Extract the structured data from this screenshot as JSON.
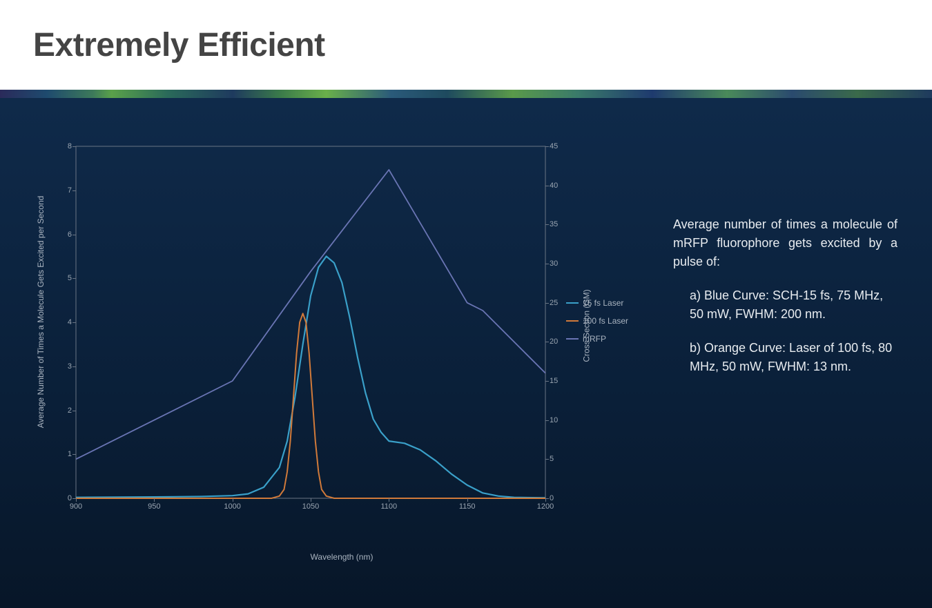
{
  "header": {
    "title": "Extremely Efficient"
  },
  "description": {
    "intro": "Average number of times a molecule of mRFP fluorophore gets excited by a pulse of:",
    "item_a": "a) Blue Curve: SCH-15 fs, 75 MHz, 50 mW, FWHM: 200 nm.",
    "item_b": "b) Orange Curve: Laser of 100 fs, 80 MHz, 50 mW, FWHM: 13 nm."
  },
  "chart": {
    "type": "line-dual-axis",
    "background_color": "transparent",
    "border_color": "#6a7584",
    "tick_color": "#9aa5b1",
    "axis_label_color": "#aab4c0",
    "axis_label_fontsize": 12,
    "tick_fontsize": 11,
    "x": {
      "label": "Wavelength (nm)",
      "min": 900,
      "max": 1200,
      "ticks": [
        900,
        950,
        1000,
        1050,
        1100,
        1150,
        1200
      ]
    },
    "y_left": {
      "label": "Average Number of Times a Molecule Gets Excited per Second",
      "min": 0,
      "max": 8,
      "ticks": [
        0,
        1,
        2,
        3,
        4,
        5,
        6,
        7,
        8
      ]
    },
    "y_right": {
      "label": "Cross Section (GM)",
      "min": 0,
      "max": 45,
      "ticks": [
        0,
        5,
        10,
        15,
        20,
        25,
        30,
        35,
        40,
        45
      ]
    },
    "legend": {
      "items": [
        {
          "label": "15 fs Laser",
          "color": "#3aa0c9"
        },
        {
          "label": "100 fs Laser",
          "color": "#d17a3a"
        },
        {
          "label": "mRFP",
          "color": "#6a75b4"
        }
      ]
    },
    "series": [
      {
        "name": "15 fs Laser",
        "axis": "left",
        "color": "#3aa0c9",
        "line_width": 2.2,
        "data": [
          [
            900,
            0.02
          ],
          [
            950,
            0.03
          ],
          [
            980,
            0.04
          ],
          [
            1000,
            0.06
          ],
          [
            1010,
            0.1
          ],
          [
            1020,
            0.25
          ],
          [
            1030,
            0.7
          ],
          [
            1035,
            1.3
          ],
          [
            1040,
            2.3
          ],
          [
            1045,
            3.5
          ],
          [
            1050,
            4.6
          ],
          [
            1055,
            5.25
          ],
          [
            1060,
            5.5
          ],
          [
            1065,
            5.35
          ],
          [
            1070,
            4.9
          ],
          [
            1075,
            4.1
          ],
          [
            1080,
            3.2
          ],
          [
            1085,
            2.4
          ],
          [
            1090,
            1.8
          ],
          [
            1095,
            1.5
          ],
          [
            1100,
            1.3
          ],
          [
            1110,
            1.25
          ],
          [
            1120,
            1.1
          ],
          [
            1130,
            0.85
          ],
          [
            1140,
            0.55
          ],
          [
            1150,
            0.3
          ],
          [
            1160,
            0.12
          ],
          [
            1170,
            0.05
          ],
          [
            1180,
            0.02
          ],
          [
            1200,
            0.01
          ]
        ]
      },
      {
        "name": "100 fs Laser",
        "axis": "left",
        "color": "#d17a3a",
        "line_width": 2,
        "data": [
          [
            900,
            0.0
          ],
          [
            1000,
            0.0
          ],
          [
            1025,
            0.0
          ],
          [
            1030,
            0.05
          ],
          [
            1033,
            0.2
          ],
          [
            1035,
            0.6
          ],
          [
            1037,
            1.3
          ],
          [
            1039,
            2.3
          ],
          [
            1041,
            3.3
          ],
          [
            1043,
            4.0
          ],
          [
            1045,
            4.2
          ],
          [
            1047,
            4.0
          ],
          [
            1049,
            3.3
          ],
          [
            1051,
            2.3
          ],
          [
            1053,
            1.3
          ],
          [
            1055,
            0.6
          ],
          [
            1057,
            0.2
          ],
          [
            1060,
            0.05
          ],
          [
            1065,
            0.0
          ],
          [
            1200,
            0.0
          ]
        ]
      },
      {
        "name": "mRFP",
        "axis": "right",
        "color": "#6a75b4",
        "line_width": 1.8,
        "data": [
          [
            900,
            5
          ],
          [
            950,
            10
          ],
          [
            1000,
            15
          ],
          [
            1050,
            29
          ],
          [
            1100,
            42
          ],
          [
            1150,
            25
          ],
          [
            1160,
            24
          ],
          [
            1200,
            16
          ]
        ]
      }
    ]
  }
}
